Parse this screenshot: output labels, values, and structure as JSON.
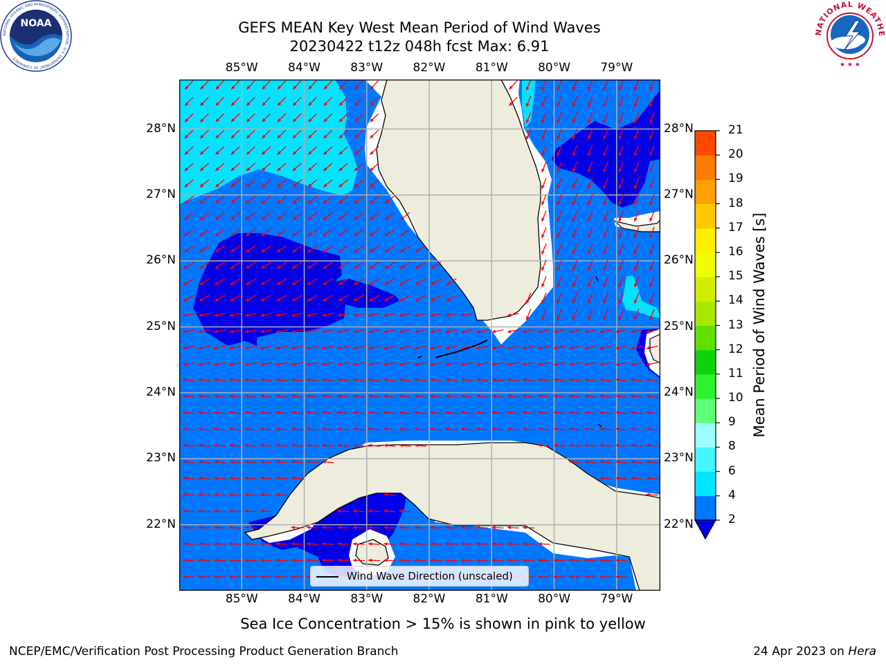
{
  "header": {
    "title_line1": "GEFS MEAN Key West Mean Period of Wind Waves",
    "title_line2": "20230422 t12z 048h fcst   Max: 6.91"
  },
  "logos": {
    "left": "noaa-logo",
    "right": "nws-logo",
    "left_text": "NOAA",
    "left_ring_text": "NATIONAL OCEANIC AND ATMOSPHERIC ADMINISTRATION · U.S. DEPARTMENT OF COMMERCE",
    "right_ring_text": "NATIONAL WEATHER SERVICE"
  },
  "map": {
    "lon_labels": [
      "85°W",
      "84°W",
      "83°W",
      "82°W",
      "81°W",
      "80°W",
      "79°W"
    ],
    "lat_labels": [
      "28°N",
      "27°N",
      "26°N",
      "25°N",
      "24°N",
      "23°N",
      "22°N"
    ],
    "lon_values": [
      -85,
      -84,
      -83,
      -82,
      -81,
      -80,
      -79
    ],
    "lat_values": [
      28,
      27,
      26,
      25,
      24,
      23,
      22
    ],
    "extent": {
      "lon_min": -86.0,
      "lon_max": -78.3,
      "lat_min": 21.0,
      "lat_max": 28.75
    },
    "land_color": "#eeecdc",
    "arrow_color": "#ff0000",
    "grid_color": "#b0b0b0",
    "legend_label": "Wind Wave Direction (unscaled)",
    "wave_direction": "mostly toward the west"
  },
  "colorbar": {
    "title": "Mean Period of Wind Waves [s]",
    "ticks": [
      "21",
      "20",
      "19",
      "18",
      "17",
      "16",
      "15",
      "14",
      "13",
      "12",
      "11",
      "10",
      "9",
      "8",
      "6",
      "4",
      "2"
    ],
    "levels": [
      2,
      4,
      6,
      8,
      9,
      10,
      11,
      12,
      13,
      14,
      15,
      16,
      17,
      18,
      19,
      20,
      21
    ],
    "colors": [
      "#0077ff",
      "#00e5ff",
      "#44f7ff",
      "#9cffff",
      "#5fff7a",
      "#2ef22e",
      "#0cd40c",
      "#61e000",
      "#a8e800",
      "#d2ee00",
      "#eeff00",
      "#ffee00",
      "#ffc800",
      "#ffa000",
      "#ff7c00",
      "#ff4800",
      "#ff1800"
    ],
    "under_color": "#0000e8"
  },
  "footer": {
    "note": "Sea Ice Concentration > 15% is shown in pink to yellow",
    "credit_left": "NCEP/EMC/Verification Post Processing Product Generation Branch",
    "credit_right_prefix": "24 Apr 2023 on ",
    "credit_right_machine": "Hera"
  }
}
